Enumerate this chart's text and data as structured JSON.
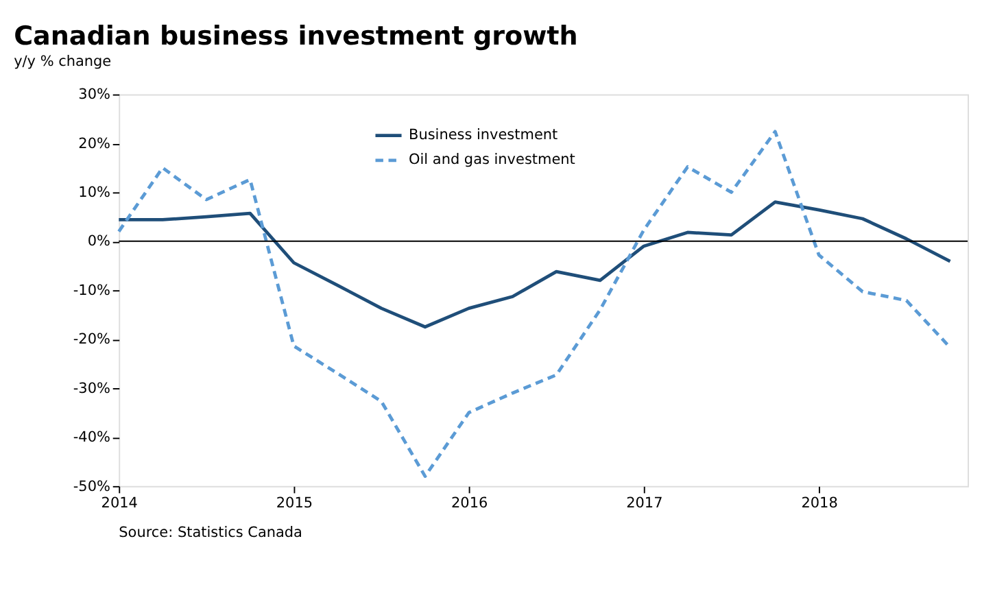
{
  "chart_data": {
    "type": "line",
    "title": "Canadian business investment growth",
    "ylabel": "y/y % change",
    "x": [
      2014,
      2014.25,
      2014.5,
      2014.75,
      2015,
      2015.25,
      2015.5,
      2015.75,
      2016,
      2016.25,
      2016.5,
      2016.75,
      2017,
      2017.25,
      2017.5,
      2017.75,
      2018,
      2018.25,
      2018.5,
      2018.75
    ],
    "series": [
      {
        "name": "Business investment",
        "color": "#1f4e79",
        "line_style": "solid",
        "values": [
          4.4,
          4.4,
          5,
          5.7,
          -4.4,
          -9,
          -13.7,
          -17.5,
          -13.7,
          -11.3,
          -6.2,
          -8,
          -1,
          1.8,
          1.3,
          8,
          6.4,
          4.6,
          0.5,
          -4.1
        ]
      },
      {
        "name": "Oil and gas investment",
        "color": "#5b9bd5",
        "line_style": "dashed",
        "values": [
          2,
          15,
          8.5,
          12.6,
          -21.4,
          -27,
          -32.7,
          -48,
          -35,
          -31,
          -27.3,
          -14,
          2.3,
          15.2,
          10,
          22.4,
          -2.8,
          -10.3,
          -12.1,
          -21.7
        ]
      }
    ],
    "xlim": [
      2014,
      2018.85
    ],
    "xticks": [
      2014,
      2015,
      2016,
      2017,
      2018
    ],
    "ylim": [
      -50,
      30
    ],
    "yticks": [
      {
        "value": -50,
        "label": "-50%"
      },
      {
        "value": -40,
        "label": "-40%"
      },
      {
        "value": -30,
        "label": "-30%"
      },
      {
        "value": -20,
        "label": "-20%"
      },
      {
        "value": -10,
        "label": "-10%"
      },
      {
        "value": 0,
        "label": "0%"
      },
      {
        "value": 10,
        "label": "10%"
      },
      {
        "value": 20,
        "label": "20%"
      },
      {
        "value": 30,
        "label": "30%"
      }
    ],
    "ref_lines": [
      {
        "axis": "y",
        "value": 0,
        "color": "#000000"
      }
    ],
    "grid": false,
    "legend": "top",
    "marker": "none",
    "annotations": [
      "Source: Statistics Canada"
    ]
  }
}
